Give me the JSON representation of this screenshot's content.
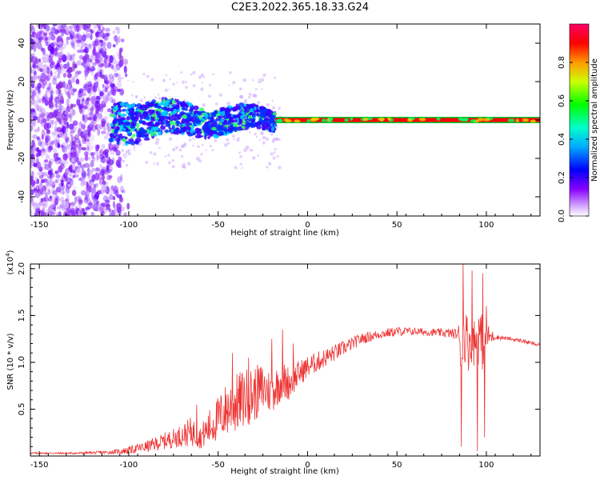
{
  "title": "C2E3.2022.365.18.33.G24",
  "chart_data": [
    {
      "type": "heatmap",
      "xlabel": "Height of straight line (km)",
      "ylabel": "Frequency (Hz)",
      "xlim": [
        -155,
        130
      ],
      "ylim": [
        -50,
        50
      ],
      "xticks": [
        -150,
        -100,
        -50,
        0,
        50,
        100
      ],
      "yticks": [
        -40,
        -20,
        0,
        20,
        40
      ],
      "colorbar": {
        "label": "Normalized spectral amplitude",
        "range": [
          0.0,
          1.0
        ],
        "ticks": [
          "0.0",
          "0.2",
          "0.4",
          "0.6",
          "0.8"
        ],
        "tick_values": [
          0.0,
          0.2,
          0.4,
          0.6,
          0.8
        ]
      },
      "features": {
        "noise_region_x": [
          -155,
          -100
        ],
        "dispersed_region_x": [
          -110,
          -18
        ],
        "narrow_line_x": [
          -18,
          130
        ],
        "narrow_line_freq": 0
      },
      "colors": {
        "line_fill": "#ff0000",
        "line_edge": "#00cc33",
        "noise": "#7b1fff"
      }
    },
    {
      "type": "line",
      "xlabel": "Height of straight line (km)",
      "ylabel": "SNR (10 * v/v)",
      "multiplier": "(x10^4)",
      "multiplier_base": "(x10",
      "multiplier_exp": "4",
      "multiplier_close": ")",
      "xlim": [
        -155,
        130
      ],
      "ylim": [
        0.0,
        2.05
      ],
      "xticks": [
        -150,
        -100,
        -50,
        0,
        50,
        100
      ],
      "yticks": [
        0.5,
        1.0,
        1.5,
        2.0
      ],
      "ytick_labels": [
        "0.5",
        "1.0",
        "1.5",
        "2.0"
      ],
      "series": [
        {
          "color": "#ee3333",
          "envelope": {
            "x": [
              -155,
              -130,
              -110,
              -100,
              -90,
              -80,
              -70,
              -65,
              -60,
              -55,
              -50,
              -45,
              -40,
              -35,
              -30,
              -25,
              -20,
              -15,
              -10,
              -5,
              0,
              10,
              20,
              30,
              40,
              50,
              60,
              70,
              80,
              84,
              86,
              88,
              90,
              92,
              94,
              96,
              98,
              100,
              105,
              110,
              120,
              130
            ],
            "mean": [
              0.03,
              0.03,
              0.04,
              0.06,
              0.1,
              0.16,
              0.22,
              0.26,
              0.2,
              0.3,
              0.4,
              0.5,
              0.56,
              0.62,
              0.66,
              0.72,
              0.68,
              0.8,
              0.78,
              0.88,
              0.95,
              1.05,
              1.15,
              1.25,
              1.3,
              1.33,
              1.33,
              1.32,
              1.31,
              1.3,
              1.2,
              1.3,
              1.2,
              1.3,
              1.2,
              1.3,
              1.2,
              1.28,
              1.27,
              1.26,
              1.23,
              1.18
            ],
            "amp": [
              0.01,
              0.01,
              0.02,
              0.04,
              0.06,
              0.09,
              0.12,
              0.16,
              0.12,
              0.2,
              0.24,
              0.3,
              0.32,
              0.32,
              0.3,
              0.28,
              0.22,
              0.22,
              0.18,
              0.14,
              0.12,
              0.1,
              0.08,
              0.06,
              0.05,
              0.05,
              0.04,
              0.04,
              0.05,
              0.06,
              0.4,
              0.3,
              0.3,
              0.3,
              0.3,
              0.3,
              0.3,
              0.15,
              0.03,
              0.02,
              0.02,
              0.02
            ]
          },
          "spikes": [
            {
              "x": -62,
              "y": 0.55
            },
            {
              "x": -42,
              "y": 1.1
            },
            {
              "x": -33,
              "y": 1.05
            },
            {
              "x": -20,
              "y": 1.25
            },
            {
              "x": -14,
              "y": 1.35
            },
            {
              "x": -8,
              "y": 1.2
            },
            {
              "x": 86,
              "y": 0.1
            },
            {
              "x": 87,
              "y": 2.05
            },
            {
              "x": 92,
              "y": 1.98
            },
            {
              "x": 95,
              "y": 0.05
            },
            {
              "x": 98,
              "y": 1.95
            },
            {
              "x": 99,
              "y": 0.2
            },
            {
              "x": 100,
              "y": 1.6
            }
          ]
        }
      ]
    }
  ]
}
